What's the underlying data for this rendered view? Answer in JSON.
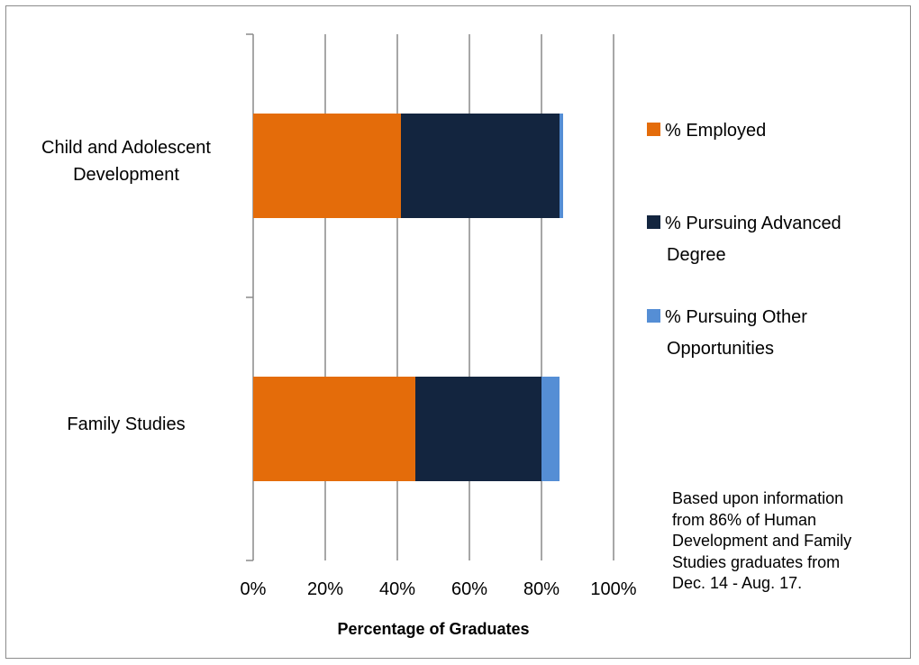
{
  "chart_data": {
    "type": "bar",
    "orientation": "horizontal",
    "stacked": true,
    "categories": [
      "Child and Adolescent Development",
      "Family Studies"
    ],
    "series": [
      {
        "name": "% Employed",
        "values": [
          41,
          45
        ],
        "color": "#e46c0a"
      },
      {
        "name": "% Pursuing Advanced Degree",
        "values": [
          44,
          35
        ],
        "color": "#13253f"
      },
      {
        "name": "% Pursuing Other Opportunities",
        "values": [
          1,
          5
        ],
        "color": "#558ed5"
      }
    ],
    "xlabel": "Percentage of Graduates",
    "xlim": [
      0,
      100
    ],
    "xticks": [
      "0%",
      "20%",
      "40%",
      "60%",
      "80%",
      "100%"
    ],
    "grid": true,
    "legend_position": "right"
  },
  "note": "Based upon information from 86% of Human Development and Family Studies graduates from Dec. 14 - Aug. 17."
}
